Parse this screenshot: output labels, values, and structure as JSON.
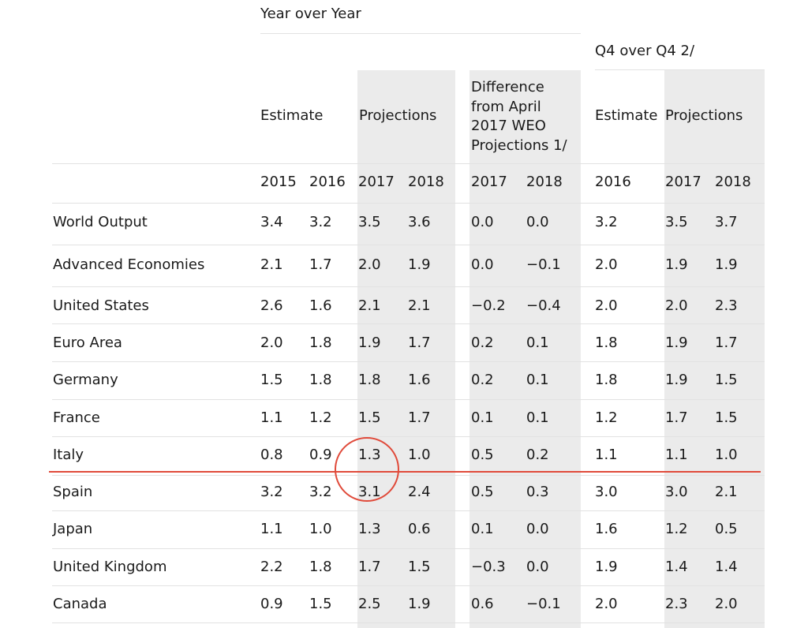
{
  "headers": {
    "year_over_year": "Year over Year",
    "q4_over_q4": "Q4 over Q4 2/",
    "estimate": "Estimate",
    "projections": "Projections",
    "difference": "Difference from April 2017 WEO Projections 1/",
    "estimate_q4": "Estimate",
    "projections_q4": "Projections"
  },
  "years": [
    "2015",
    "2016",
    "2017",
    "2018",
    "2017",
    "2018",
    "2016",
    "2017",
    "2018"
  ],
  "rows": [
    {
      "label": "World Output",
      "values": [
        "3.4",
        "3.2",
        "3.5",
        "3.6",
        "0.0",
        "0.0",
        "3.2",
        "3.5",
        "3.7"
      ]
    },
    {
      "label": "Advanced Economies",
      "values": [
        "2.1",
        "1.7",
        "2.0",
        "1.9",
        "0.0",
        "−0.1",
        "2.0",
        "1.9",
        "1.9"
      ]
    },
    {
      "label": "United States",
      "values": [
        "2.6",
        "1.6",
        "2.1",
        "2.1",
        "−0.2",
        "−0.4",
        "2.0",
        "2.0",
        "2.3"
      ]
    },
    {
      "label": "Euro Area",
      "values": [
        "2.0",
        "1.8",
        "1.9",
        "1.7",
        "0.2",
        "0.1",
        "1.8",
        "1.9",
        "1.7"
      ]
    },
    {
      "label": "Germany",
      "values": [
        "1.5",
        "1.8",
        "1.8",
        "1.6",
        "0.2",
        "0.1",
        "1.8",
        "1.9",
        "1.5"
      ]
    },
    {
      "label": "France",
      "values": [
        "1.1",
        "1.2",
        "1.5",
        "1.7",
        "0.1",
        "0.1",
        "1.2",
        "1.7",
        "1.5"
      ]
    },
    {
      "label": "Italy",
      "values": [
        "0.8",
        "0.9",
        "1.3",
        "1.0",
        "0.5",
        "0.2",
        "1.1",
        "1.1",
        "1.0"
      ]
    },
    {
      "label": "Spain",
      "values": [
        "3.2",
        "3.2",
        "3.1",
        "2.4",
        "0.5",
        "0.3",
        "3.0",
        "3.0",
        "2.1"
      ]
    },
    {
      "label": "Japan",
      "values": [
        "1.1",
        "1.0",
        "1.3",
        "0.6",
        "0.1",
        "0.0",
        "1.6",
        "1.2",
        "0.5"
      ]
    },
    {
      "label": "United Kingdom",
      "values": [
        "2.2",
        "1.8",
        "1.7",
        "1.5",
        "−0.3",
        "0.0",
        "1.9",
        "1.4",
        "1.4"
      ]
    },
    {
      "label": "Canada",
      "values": [
        "0.9",
        "1.5",
        "2.5",
        "1.9",
        "0.6",
        "−0.1",
        "2.0",
        "2.3",
        "2.0"
      ]
    }
  ],
  "annotation_color": "#e04a3a"
}
